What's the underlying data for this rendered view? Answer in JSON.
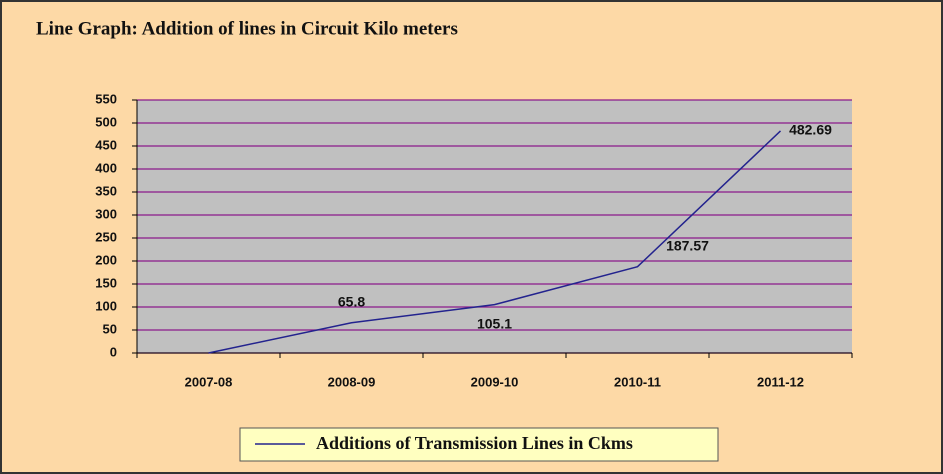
{
  "chart_data": {
    "type": "line",
    "title": "Line Graph: Addition of lines in Circuit Kilo meters",
    "categories": [
      "2007-08",
      "2008-09",
      "2009-10",
      "2010-11",
      "2011-12"
    ],
    "series": [
      {
        "name": "Additions of Transmission Lines in Ckms",
        "color": "#23238e",
        "values": [
          0,
          65.8,
          105.1,
          187.57,
          482.69
        ],
        "value_labels": [
          null,
          "65.8",
          "105.1",
          "187.57",
          "482.69"
        ]
      }
    ],
    "ylim": [
      0,
      550
    ],
    "yticks": [
      0,
      50,
      100,
      150,
      200,
      250,
      300,
      350,
      400,
      450,
      500,
      550
    ],
    "grid": true,
    "legend": "bottom"
  }
}
